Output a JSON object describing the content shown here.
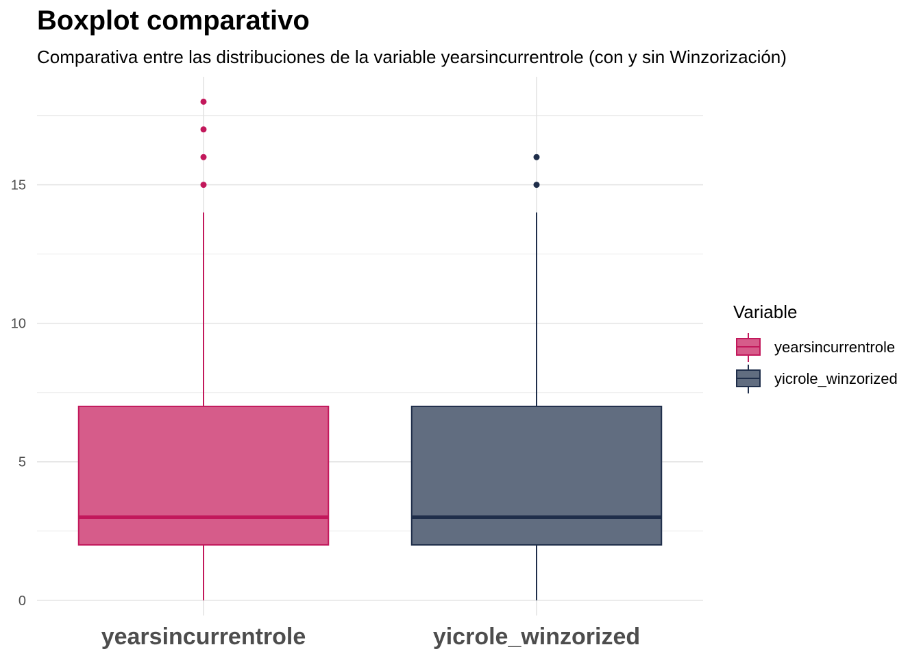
{
  "title": "Boxplot comparativo",
  "subtitle": "Comparativa entre las distribuciones de la variable yearsincurrentrole (con y sin Winzorización)",
  "legend_title": "Variable",
  "chart_data": {
    "type": "boxplot",
    "title": "Boxplot comparativo",
    "subtitle": "Comparativa entre las distribuciones de la variable yearsincurrentrole (con y sin Winzorización)",
    "xlabel": "",
    "ylabel": "",
    "ylim": [
      -0.55,
      18.9
    ],
    "yticks": [
      0,
      5,
      10,
      15
    ],
    "grid": true,
    "legend_position": "right",
    "categories": [
      "yearsincurrentrole",
      "yicrole_winzorized"
    ],
    "series": [
      {
        "name": "yearsincurrentrole",
        "color": "#C2185B",
        "fill": "#D65C8A",
        "min": 0,
        "q1": 2,
        "median": 3,
        "q3": 7,
        "max": 14,
        "outliers": [
          15,
          16,
          17,
          18
        ]
      },
      {
        "name": "yicrole_winzorized",
        "color": "#1F2E4A",
        "fill": "#616D80",
        "min": 0,
        "q1": 2,
        "median": 3,
        "q3": 7,
        "max": 14,
        "outliers": [
          15,
          16
        ]
      }
    ]
  }
}
